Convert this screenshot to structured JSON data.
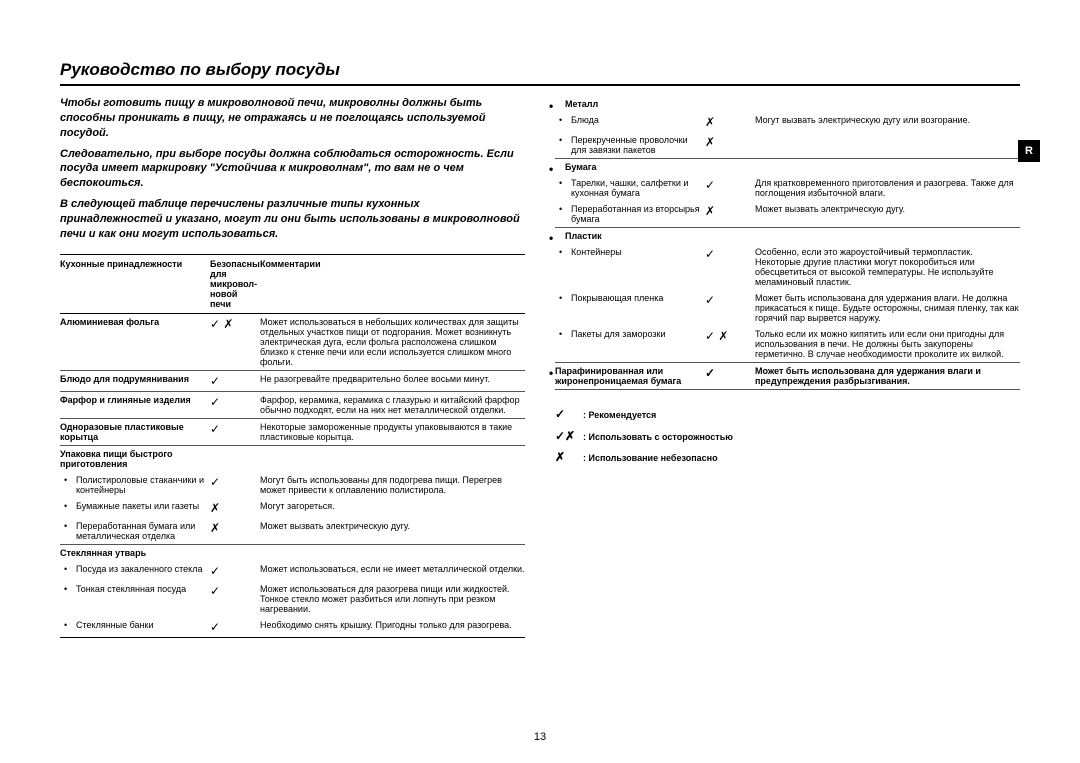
{
  "title": "Руководство по выбору посуды",
  "sideTab": "R",
  "pageNumber": "13",
  "intro": {
    "p1": "Чтобы готовить пищу в микроволновой печи, микроволны должны быть способны проникать в пищу, не отражаясь и не поглощаясь используемой посудой.",
    "p2": "Следовательно, при выборе посуды должна соблюдаться осторожность. Если посуда имеет маркировку \"Устойчива к микроволнам\", то вам не о чем беспокоиться.",
    "p3": "В следующей таблице перечислены различные типы кухонных принадлежностей и указано, могут ли они быть использованы в микроволновой печи и как они могут использоваться."
  },
  "headers": {
    "acc": "Кухонные принадлежности",
    "safe": "Безопасны для микровол-новой печи",
    "comm": "Комментарии"
  },
  "rowsLeft": [
    {
      "name": "Алюминиевая фольга",
      "safe": "✓ ✗",
      "comm": "Может использоваться в небольших количествах для защиты отдельных участков пищи от подгорания. Может возникнуть электрическая дуга, если фольга расположена слишком близко к стенке печи или если используется слишком много фольги.",
      "bold": true
    },
    {
      "name": "Блюдо для подрумянивания",
      "safe": "✓",
      "comm": "Не разогревайте предварительно более восьми минут.",
      "bold": true
    },
    {
      "name": "Фарфор и глиняные изделия",
      "safe": "✓",
      "comm": "Фарфор, керамика, керамика с глазурью и китайский фарфор обычно подходят, если на них нет металлической отделки.",
      "bold": true
    },
    {
      "name": "Одноразовые пластиковые корытца",
      "safe": "✓",
      "comm": "Некоторые замороженные продукты упаковываются в такие пластиковые корытца.",
      "bold": true
    }
  ],
  "fastFood": {
    "header": "Упаковка пищи быстрого приготовления",
    "items": [
      {
        "name": "Полистироловые стаканчики и контейнеры",
        "safe": "✓",
        "comm": "Могут быть использованы для подогрева пищи. Перегрев может привести к оплавлению полистирола."
      },
      {
        "name": "Бумажные пакеты или газеты",
        "safe": "✗",
        "comm": "Могут загореться."
      },
      {
        "name": "Переработанная бумага или металлическая отделка",
        "safe": "✗",
        "comm": "Может вызвать электрическую дугу."
      }
    ]
  },
  "glass": {
    "header": "Стеклянная утварь",
    "items": [
      {
        "name": "Посуда из закаленного стекла",
        "safe": "✓",
        "comm": "Может использоваться, если не имеет металлической отделки."
      },
      {
        "name": "Тонкая стеклянная посуда",
        "safe": "✓",
        "comm": "Может использоваться для разогрева пищи или жидкостей. Тонкое стекло может разбиться или лопнуть при резком нагревании."
      },
      {
        "name": "Стеклянные банки",
        "safe": "✓",
        "comm": "Необходимо снять крышку. Пригодны только для разогрева."
      }
    ]
  },
  "metal": {
    "header": "Металл",
    "items": [
      {
        "name": "Блюда",
        "safe": "✗",
        "comm": "Могут вызвать электрическую дугу или возгорание."
      },
      {
        "name": "Перекрученные проволочки для завязки пакетов",
        "safe": "✗",
        "comm": ""
      }
    ]
  },
  "paper": {
    "header": "Бумага",
    "items": [
      {
        "name": "Тарелки, чашки, салфетки и кухонная бумага",
        "safe": "✓",
        "comm": "Для кратковременного приготовления и разогрева. Также для поглощения избыточной влаги."
      },
      {
        "name": "Переработанная из вторсырья бумага",
        "safe": "✗",
        "comm": "Может вызвать электрическую дугу."
      }
    ]
  },
  "plastic": {
    "header": "Пластик",
    "items": [
      {
        "name": "Контейнеры",
        "safe": "✓",
        "comm": "Особенно, если это жароустойчивый термопластик. Некоторые другие пластики могут покоробиться или обесцветиться от высокой температуры. Не используйте меламиновый пластик."
      },
      {
        "name": "Покрывающая пленка",
        "safe": "✓",
        "comm": "Может быть использована для удержания влаги. Не должна прикасаться к пище. Будьте осторожны, снимая пленку, так как горячий пар вырвется наружу."
      },
      {
        "name": "Пакеты для заморозки",
        "safe": "✓ ✗",
        "comm": "Только если их можно кипятить или если они пригодны для использования в печи. Не должны быть закупорены герметично. В случае необходимости проколите их вилкой."
      }
    ]
  },
  "wax": {
    "name": "Парафинированная или жиронепроницаемая бумага",
    "safe": "✓",
    "comm": "Может быть использована для удержания влаги и предупреждения разбрызгивания."
  },
  "legend": {
    "rec": ": Рекомендуется",
    "care": ": Использовать с осторожностью",
    "unsafe": ": Использование небезопасно"
  }
}
